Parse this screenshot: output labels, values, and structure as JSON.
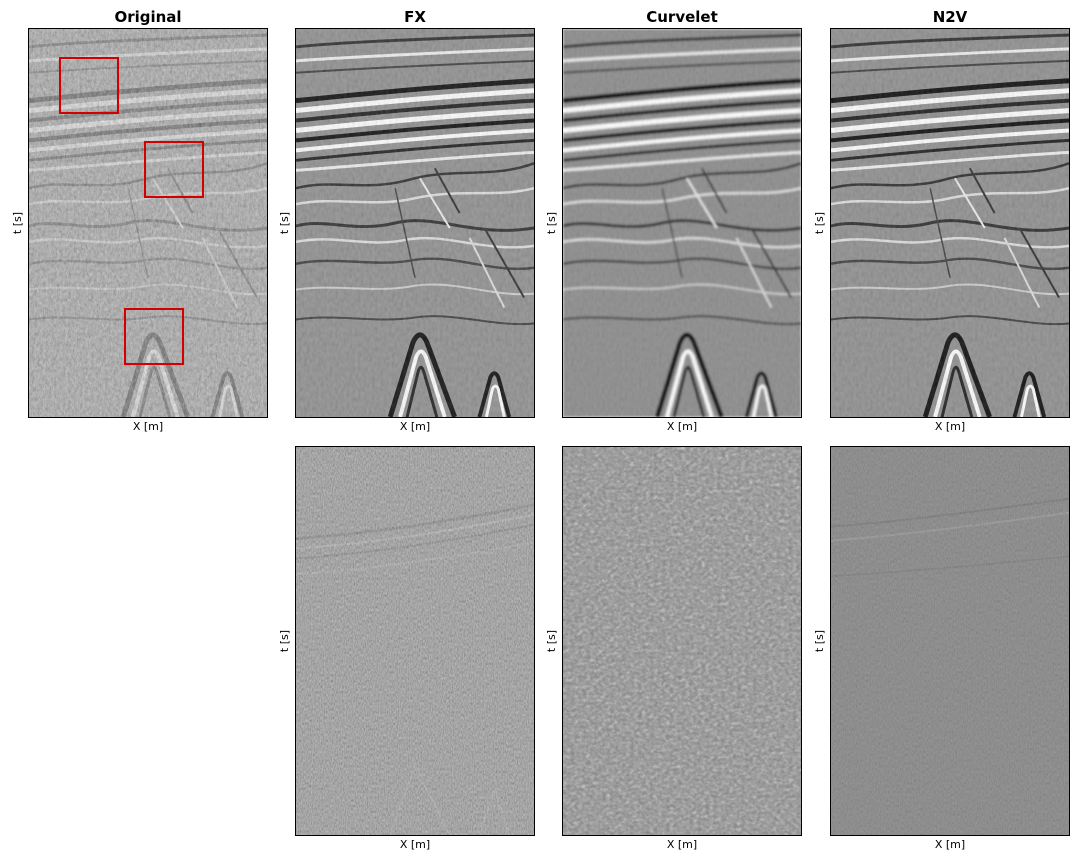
{
  "columns": [
    {
      "id": "original",
      "title": "Original"
    },
    {
      "id": "fx",
      "title": "FX"
    },
    {
      "id": "curvelet",
      "title": "Curvelet"
    },
    {
      "id": "n2v",
      "title": "N2V"
    }
  ],
  "axes": {
    "xlabel": "X [m]",
    "ylabel": "t [s]"
  },
  "colors": {
    "highlight": "#d40000",
    "border": "#000000"
  },
  "panel_contents": {
    "top_row": "seismic section (grayscale)",
    "bottom_row": "removed noise (grayscale)"
  }
}
